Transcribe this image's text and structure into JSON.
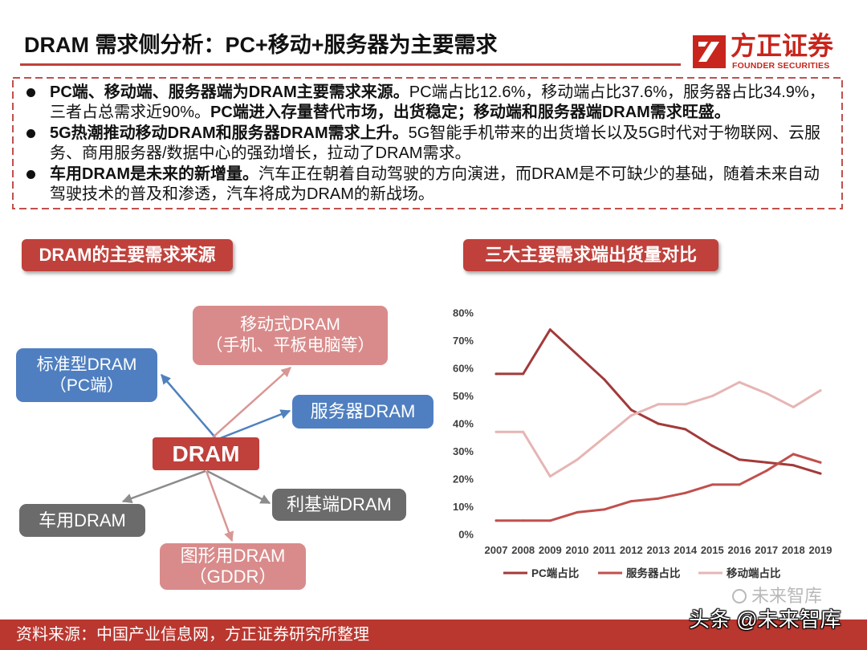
{
  "header": {
    "title": "DRAM 需求侧分析：PC+移动+服务器为主要需求",
    "logo_cn": "方正证券",
    "logo_en": "FOUNDER SECURITIES"
  },
  "summary": {
    "bullets": [
      {
        "lead": "PC端、移动端、服务器端为DRAM主要需求来源。",
        "body": "PC端占比12.6%，移动端占比37.6%，服务器占比34.9%，三者占总需求近90%。",
        "emphasis": "PC端进入存量替代市场，出货稳定；移动端和服务器端DRAM需求旺盛。"
      },
      {
        "lead": "5G热潮推动移动DRAM和服务器DRAM需求上升。",
        "body": "5G智能手机带来的出货增长以及5G时代对于物联网、云服务、商用服务器/数据中心的强劲增长，拉动了DRAM需求。"
      },
      {
        "lead": "车用DRAM是未来的新增量。",
        "body": "汽车正在朝着自动驾驶的方向演进，而DRAM是不可缺少的基础，随着未来自动驾驶技术的普及和渗透，汽车将成为DRAM的新战场。"
      }
    ]
  },
  "diagram": {
    "title": "DRAM的主要需求来源",
    "center": "DRAM",
    "nodes": {
      "mobile": {
        "line1": "移动式DRAM",
        "line2": "（手机、平板电脑等）"
      },
      "standard": {
        "line1": "标准型DRAM",
        "line2": "（PC端）"
      },
      "server": {
        "line1": "服务器DRAM"
      },
      "auto": {
        "line1": "车用DRAM"
      },
      "niche": {
        "line1": "利基端DRAM"
      },
      "graphics": {
        "line1": "图形用DRAM",
        "line2": "（GDDR）"
      }
    }
  },
  "chart_data": {
    "type": "line",
    "title": "三大主要需求端出货量对比",
    "categories": [
      "2007",
      "2008",
      "2009",
      "2010",
      "2011",
      "2012",
      "2013",
      "2014",
      "2015",
      "2016",
      "2017",
      "2018",
      "2019"
    ],
    "ylim": [
      0,
      80
    ],
    "yticks": [
      0,
      10,
      20,
      30,
      40,
      50,
      60,
      70,
      80
    ],
    "ytick_labels": [
      "0%",
      "10%",
      "20%",
      "30%",
      "40%",
      "50%",
      "60%",
      "70%",
      "80%"
    ],
    "grid": false,
    "legend_position": "bottom",
    "series": [
      {
        "name": "PC端占比",
        "values": [
          58,
          58,
          74,
          65,
          56,
          45,
          40,
          38,
          32,
          27,
          26,
          25,
          22
        ],
        "color": "#A23A3A"
      },
      {
        "name": "服务器占比",
        "values": [
          5,
          5,
          5,
          8,
          9,
          12,
          13,
          15,
          18,
          18,
          23,
          29,
          26
        ],
        "color": "#C0504D"
      },
      {
        "name": "移动端占比",
        "values": [
          37,
          37,
          21,
          27,
          35,
          43,
          47,
          47,
          50,
          55,
          51,
          46,
          52
        ],
        "color": "#E6B5B4"
      }
    ]
  },
  "footer": {
    "source": "资料来源：中国产业信息网，方正证券研究所整理",
    "watermark": "头条 @未来智库",
    "watermark_ghost": "未来智库"
  },
  "theme": {
    "accent": "#C0413B",
    "footer": "#B9372F",
    "logo": "#C8251C",
    "node_blue": "#4F7FC0",
    "node_pink": "#D98B8B",
    "node_gray": "#6B6B6B",
    "node_center": "#C0403B",
    "arrow_blue": "#4F81BD",
    "arrow_pink": "#D99694",
    "arrow_gray": "#8C8C8C",
    "dashed_border": "#C0504D"
  }
}
